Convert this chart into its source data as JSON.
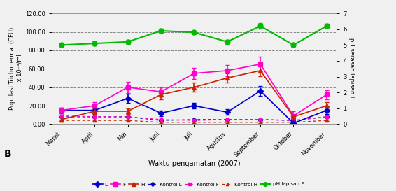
{
  "months": [
    "Maret",
    "April",
    "Mei",
    "Juni",
    "Juli",
    "Agustus",
    "September",
    "Oktober",
    "November"
  ],
  "L": [
    15,
    15,
    28,
    12,
    20,
    13,
    36,
    1,
    15
  ],
  "L_err": [
    3,
    3,
    5,
    3,
    3,
    3,
    5,
    2,
    4
  ],
  "F": [
    15,
    20,
    40,
    35,
    55,
    58,
    65,
    9,
    32
  ],
  "F_err": [
    3,
    4,
    6,
    5,
    6,
    6,
    8,
    5,
    5
  ],
  "H": [
    5,
    14,
    14,
    32,
    40,
    50,
    58,
    8,
    20
  ],
  "H_err": [
    2,
    3,
    3,
    5,
    5,
    5,
    6,
    2,
    4
  ],
  "KL": [
    8,
    8,
    8,
    4,
    5,
    5,
    5,
    4,
    8
  ],
  "KL_err": [
    1,
    1,
    1,
    1,
    1,
    1,
    1,
    1,
    1
  ],
  "KF": [
    9,
    8,
    8,
    5,
    4,
    5,
    5,
    4,
    8
  ],
  "KF_err": [
    1,
    1,
    1,
    1,
    1,
    1,
    1,
    1,
    1
  ],
  "KH": [
    4,
    4,
    4,
    2,
    2,
    2,
    2,
    2,
    4
  ],
  "KH_err": [
    1,
    1,
    1,
    1,
    1,
    1,
    1,
    1,
    1
  ],
  "pH": [
    5.0,
    5.1,
    5.2,
    5.9,
    5.8,
    5.2,
    6.2,
    5.0,
    6.2
  ],
  "pH_err": [
    0.12,
    0.12,
    0.12,
    0.12,
    0.12,
    0.12,
    0.18,
    0.12,
    0.12
  ],
  "L_color": "#0000cc",
  "F_color": "#ff00cc",
  "H_color": "#cc2200",
  "KL_color": "#0000cc",
  "KF_color": "#ff00cc",
  "KH_color": "#cc2200",
  "pH_color": "#00bb00",
  "ylim_left": [
    0,
    120
  ],
  "ylim_right": [
    0,
    7
  ],
  "ylabel_left": "Populasi Trichoderma  (CFU)\n x 10⁻³/ml",
  "ylabel_right": "pH serasah lapisan F",
  "xlabel": "Waktu pengamatan (2007)",
  "panel_label": "B",
  "yticks_left": [
    0,
    20,
    40,
    60,
    80,
    100,
    120
  ],
  "ytick_labels_left": [
    "0.00",
    "20.00",
    "40.00",
    "60.00",
    "80.00",
    "100.00",
    "120.00"
  ],
  "yticks_right": [
    0,
    1,
    2,
    3,
    4,
    5,
    6,
    7
  ],
  "background_color": "#f0f0f0",
  "grid_color": "#888888"
}
